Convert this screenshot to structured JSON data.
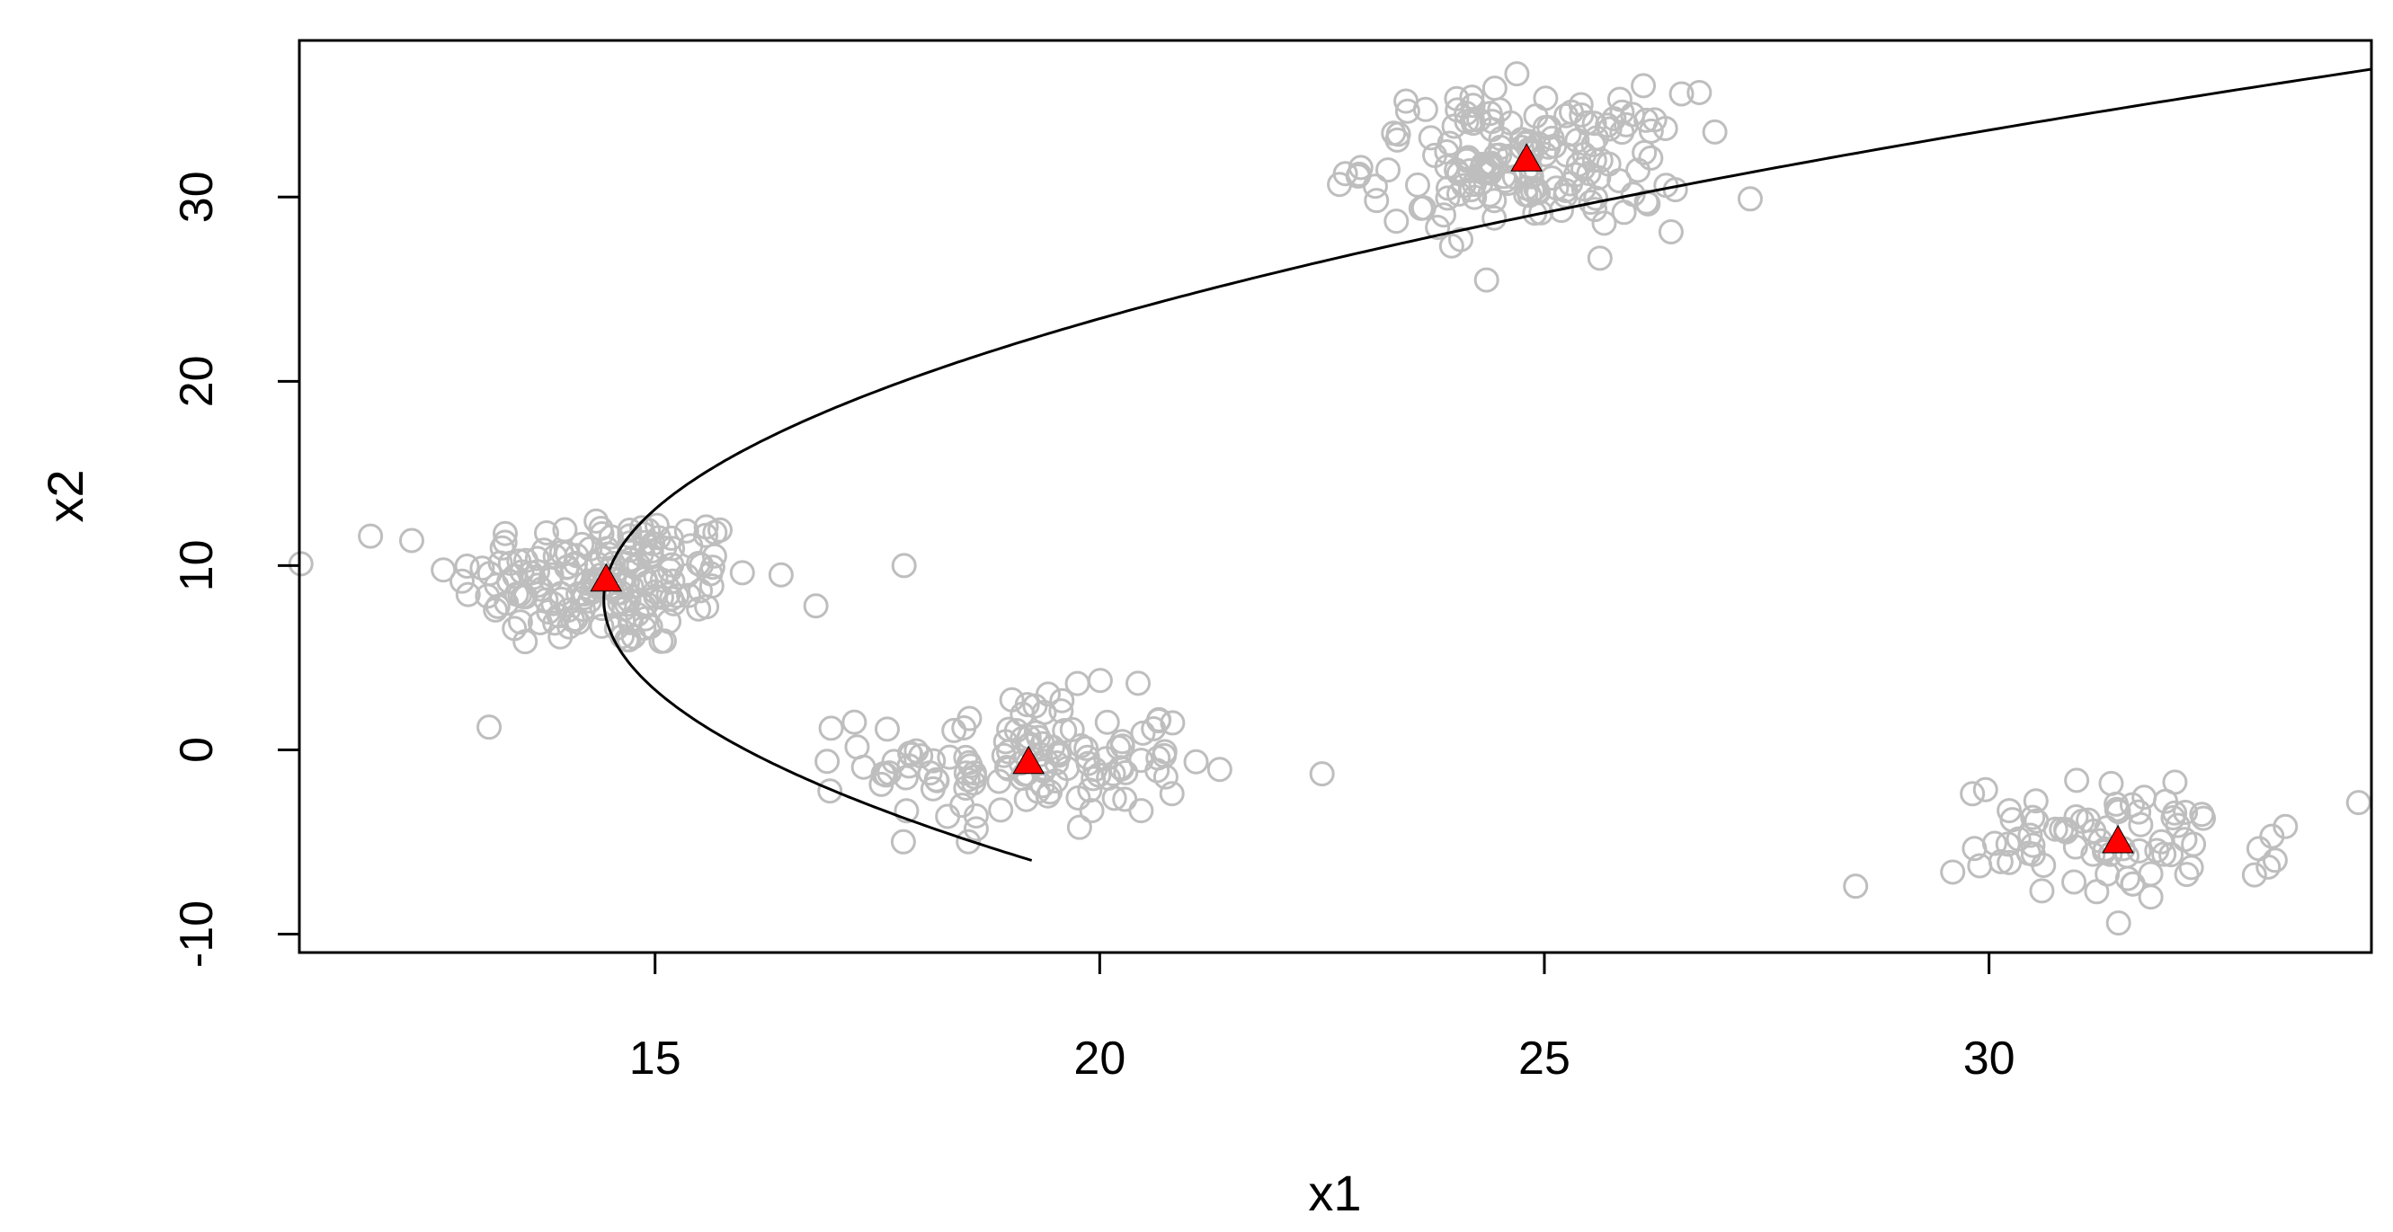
{
  "chart_data": {
    "type": "scatter",
    "title": "",
    "xlabel": "x1",
    "ylabel": "x2",
    "xlim": [
      11,
      34.3
    ],
    "ylim": [
      -11,
      38.5
    ],
    "xticks": [
      15,
      20,
      25,
      30
    ],
    "xtick_labels": [
      "15",
      "20",
      "25",
      "30"
    ],
    "yticks": [
      -10,
      0,
      10,
      20,
      30
    ],
    "ytick_labels": [
      "-10",
      "0",
      "10",
      "20",
      "30"
    ],
    "grid": false,
    "legend": "none",
    "colors": {
      "points": "#bebebe",
      "centers": "#ff0000",
      "curve": "#000000",
      "axes": "#000000"
    },
    "clusters": [
      {
        "center": [
          14.45,
          9.2
        ],
        "sd": [
          0.85,
          1.9
        ],
        "n": 180
      },
      {
        "center": [
          19.2,
          -0.7
        ],
        "sd": [
          0.9,
          1.85
        ],
        "n": 130
      },
      {
        "center": [
          24.8,
          32.0
        ],
        "sd": [
          0.9,
          1.85
        ],
        "n": 170
      },
      {
        "center": [
          31.45,
          -5.0
        ],
        "sd": [
          0.9,
          1.6
        ],
        "n": 80
      }
    ],
    "outliers": [
      [
        17.8,
        10.0
      ],
      [
        22.5,
        -1.3
      ],
      [
        11.8,
        11.6
      ],
      [
        28.5,
        -7.4
      ],
      [
        24.35,
        25.5
      ]
    ],
    "centers": [
      [
        14.45,
        9.2
      ],
      [
        19.2,
        -0.7
      ],
      [
        24.8,
        32.0
      ],
      [
        31.45,
        -5.0
      ]
    ],
    "curve": {
      "equation": "x1 = a + b*(x2 - c) + d*(x2 - c)^2",
      "a": 14.45,
      "b": 0.05,
      "c": 9.2,
      "d": 0.024,
      "x2_range": [
        -6,
        38.5
      ]
    }
  }
}
